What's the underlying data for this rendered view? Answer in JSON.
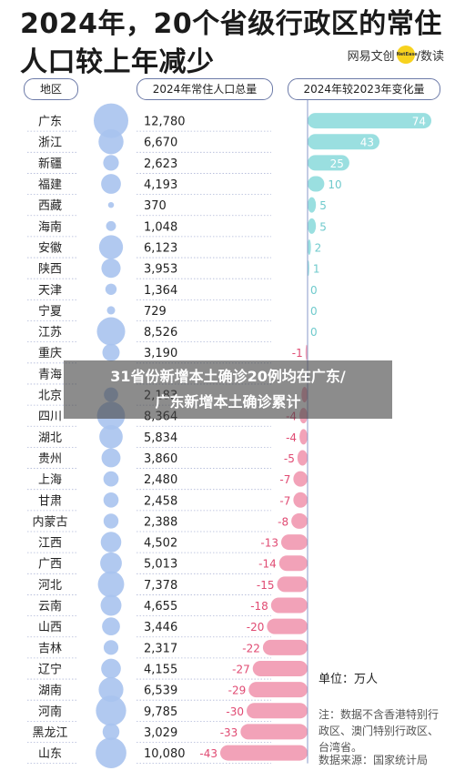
{
  "title": "2024年，20个省级行政区的常住人口较上年减少",
  "brand": {
    "left": "网易文创",
    "logo_text": "NetEase",
    "right": "/数读"
  },
  "headers": {
    "region": "地区",
    "population": "2024年常住人口总量",
    "change": "2024年较2023年变化量"
  },
  "overlay": {
    "line1": "31省份新增本土确诊20例均在广东/",
    "line2": "广东新增本土确诊累计"
  },
  "unit_label": "单位：万人",
  "note": "注：数据不含香港特别行政区、澳门特别行政区、台湾省。",
  "source": "数据来源：国家统计局",
  "colors": {
    "increase": "#9adfe0",
    "increase_label": "#ffffff",
    "decrease": "#f2a2b8",
    "decrease_label": "#e04a72",
    "bubble": "#a9c3ee",
    "axis": "#8a9ac9",
    "row_line": "#b0b8d8"
  },
  "chart_data": {
    "type": "table",
    "regions": [
      "广东",
      "浙江",
      "新疆",
      "福建",
      "西藏",
      "海南",
      "安徽",
      "陕西",
      "天津",
      "宁夏",
      "江苏",
      "重庆",
      "青海",
      "北京",
      "四川",
      "湖北",
      "贵州",
      "上海",
      "甘肃",
      "内蒙古",
      "江西",
      "广西",
      "河北",
      "云南",
      "山西",
      "吉林",
      "辽宁",
      "湖南",
      "河南",
      "黑龙江",
      "山东"
    ],
    "population_labels": [
      "12,780",
      "6,670",
      "2,623",
      "4,193",
      "370",
      "1,048",
      "6,123",
      "3,953",
      "1,364",
      "729",
      "8,526",
      "3,190",
      "",
      "2,183",
      "8,364",
      "5,834",
      "3,860",
      "2,480",
      "2,458",
      "2,388",
      "4,502",
      "5,013",
      "7,378",
      "4,655",
      "3,446",
      "2,317",
      "4,155",
      "6,539",
      "9,785",
      "3,029",
      "10,080"
    ],
    "population": [
      12780,
      6670,
      2623,
      4193,
      370,
      1048,
      6123,
      3953,
      1364,
      729,
      8526,
      3190,
      null,
      2183,
      8364,
      5834,
      3860,
      2480,
      2458,
      2388,
      4502,
      5013,
      7378,
      4655,
      3446,
      2317,
      4155,
      6539,
      9785,
      3029,
      10080
    ],
    "change": [
      74,
      43,
      25,
      10,
      5,
      5,
      2,
      1,
      0,
      0,
      0,
      -1,
      null,
      -3,
      -4,
      -4,
      -5,
      -7,
      -7,
      -8,
      -13,
      -14,
      -15,
      -18,
      -20,
      -22,
      -27,
      -29,
      -30,
      -33,
      -43
    ],
    "change_labels": [
      "74",
      "43",
      "25",
      "10",
      "5",
      "5",
      "2",
      "1",
      "0",
      "0",
      "0",
      "-1",
      "",
      "",
      "-4",
      "-4",
      "-5",
      "-7",
      "-7",
      "-8",
      "-13",
      "-14",
      "-15",
      "-18",
      "-20",
      "-22",
      "-27",
      "-29",
      "-30",
      "-33",
      "-43"
    ],
    "change_unit": "万人"
  }
}
